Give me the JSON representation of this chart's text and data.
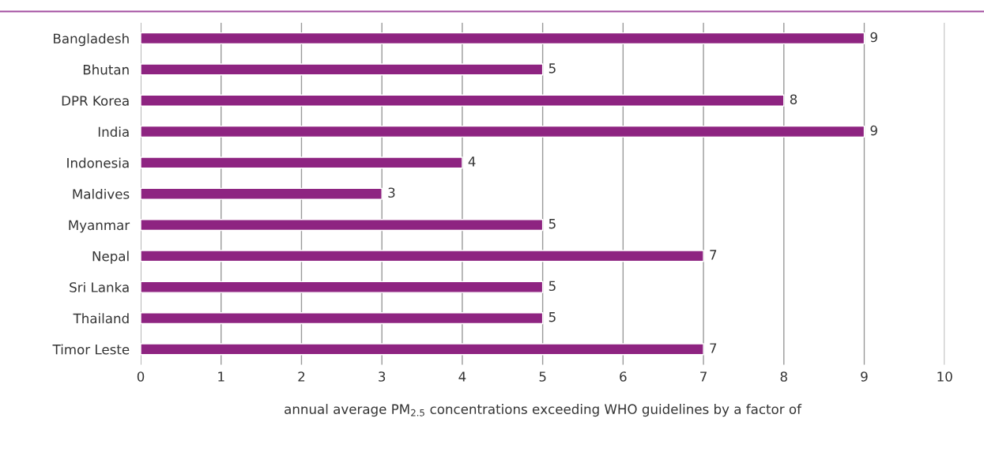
{
  "chart_data": {
    "type": "bar",
    "orientation": "horizontal",
    "xlabel": "annual average PM$_{2.5}$ concentrations exceeding WHO guidelines by a factor of",
    "categories": [
      "Bangladesh",
      "Bhutan",
      "DPR Korea",
      "India",
      "Indonesia",
      "Maldives",
      "Myanmar",
      "Nepal",
      "Sri Lanka",
      "Thailand",
      "Timor Leste"
    ],
    "values": [
      9,
      5,
      8,
      9,
      4,
      3,
      5,
      7,
      5,
      5,
      7
    ],
    "color": "#8e2481",
    "xlim": [
      0,
      10
    ],
    "xticks": [
      0,
      1,
      2,
      3,
      4,
      5,
      6,
      7,
      8,
      9,
      10
    ],
    "grid": "x",
    "data_labels": true
  }
}
